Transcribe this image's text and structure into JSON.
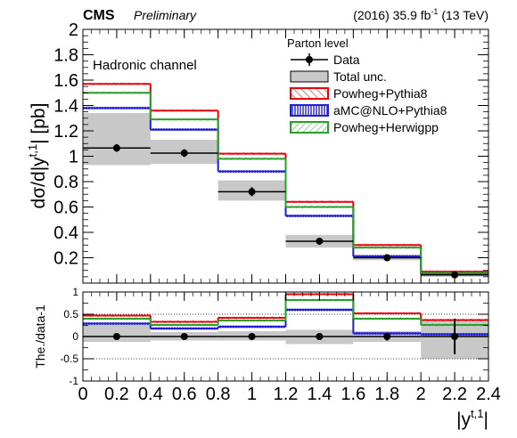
{
  "header": {
    "experiment": "CMS",
    "status": "Preliminary",
    "lumi_prefix": "(2016) 35.9 fb",
    "lumi_sup": "-1",
    "lumi_suffix": " (13 TeV)"
  },
  "chart_data": [
    {
      "type": "histogram",
      "panel": "main",
      "annotation": "Hadronic channel",
      "ylabel": "dσ/d|y^{t,1}| [pb]",
      "ylim": [
        0,
        2
      ],
      "yticks": [
        0.2,
        0.4,
        0.6,
        0.8,
        1,
        1.2,
        1.4,
        1.6,
        1.8,
        2
      ],
      "xlim": [
        0,
        2.4
      ],
      "bin_edges": [
        0,
        0.4,
        0.8,
        1.2,
        1.6,
        2.0,
        2.4
      ],
      "bin_centers": [
        0.2,
        0.6,
        1.0,
        1.4,
        1.8,
        2.2
      ],
      "legend": {
        "title": "Parton level",
        "placement": "top-right",
        "entries": [
          "Data",
          "Total unc.",
          "Powheg+Pythia8",
          "aMC@NLO+Pythia8",
          "Powheg+Herwigpp"
        ]
      },
      "data": {
        "values": [
          1.065,
          1.025,
          0.72,
          0.33,
          0.2,
          0.065
        ],
        "stat_err": [
          0.03,
          0.03,
          0.035,
          0.025,
          0.015,
          0.01
        ],
        "total_unc_low": [
          0.93,
          0.94,
          0.65,
          0.28,
          0.18,
          0.05
        ],
        "total_unc_high": [
          1.34,
          1.13,
          0.81,
          0.38,
          0.225,
          0.09
        ]
      },
      "series": [
        {
          "name": "Powheg+Pythia8",
          "color": "#e8000b",
          "values": [
            1.57,
            1.36,
            1.02,
            0.64,
            0.3,
            0.09
          ]
        },
        {
          "name": "aMC@NLO+Pythia8",
          "color": "#1f1fd8",
          "values": [
            1.38,
            1.21,
            0.88,
            0.53,
            0.21,
            0.07
          ]
        },
        {
          "name": "Powheg+Herwigpp",
          "color": "#2aa02a",
          "values": [
            1.5,
            1.29,
            0.98,
            0.6,
            0.28,
            0.08
          ]
        }
      ]
    },
    {
      "type": "histogram",
      "panel": "ratio",
      "ylabel": "The./data-1",
      "xlabel": "|y^{t,1}|",
      "ylim": [
        -1,
        1
      ],
      "yticks": [
        -1,
        -0.5,
        0,
        0.5,
        1
      ],
      "xticks": [
        0,
        0.2,
        0.4,
        0.6,
        0.8,
        1,
        1.2,
        1.4,
        1.6,
        1.8,
        2,
        2.2,
        2.4
      ],
      "dotted_lines": [
        -0.5,
        0.5
      ],
      "data": {
        "values": [
          0,
          0,
          0,
          0,
          0,
          0
        ],
        "stat_err": [
          0.03,
          0.03,
          0.04,
          0.08,
          0.09,
          0.4
        ],
        "total_unc_low": [
          -0.12,
          -0.09,
          -0.09,
          -0.17,
          -0.12,
          -0.5
        ],
        "total_unc_high": [
          0.26,
          0.1,
          0.12,
          0.15,
          0.12,
          0.35
        ]
      },
      "series": [
        {
          "name": "Powheg+Pythia8",
          "color": "#e8000b",
          "values": [
            0.47,
            0.33,
            0.42,
            0.95,
            0.52,
            0.37
          ]
        },
        {
          "name": "aMC@NLO+Pythia8",
          "color": "#1f1fd8",
          "values": [
            0.29,
            0.18,
            0.22,
            0.6,
            0.07,
            0.05
          ]
        },
        {
          "name": "Powheg+Herwigpp",
          "color": "#2aa02a",
          "values": [
            0.4,
            0.26,
            0.36,
            0.82,
            0.4,
            0.26
          ]
        }
      ]
    }
  ]
}
